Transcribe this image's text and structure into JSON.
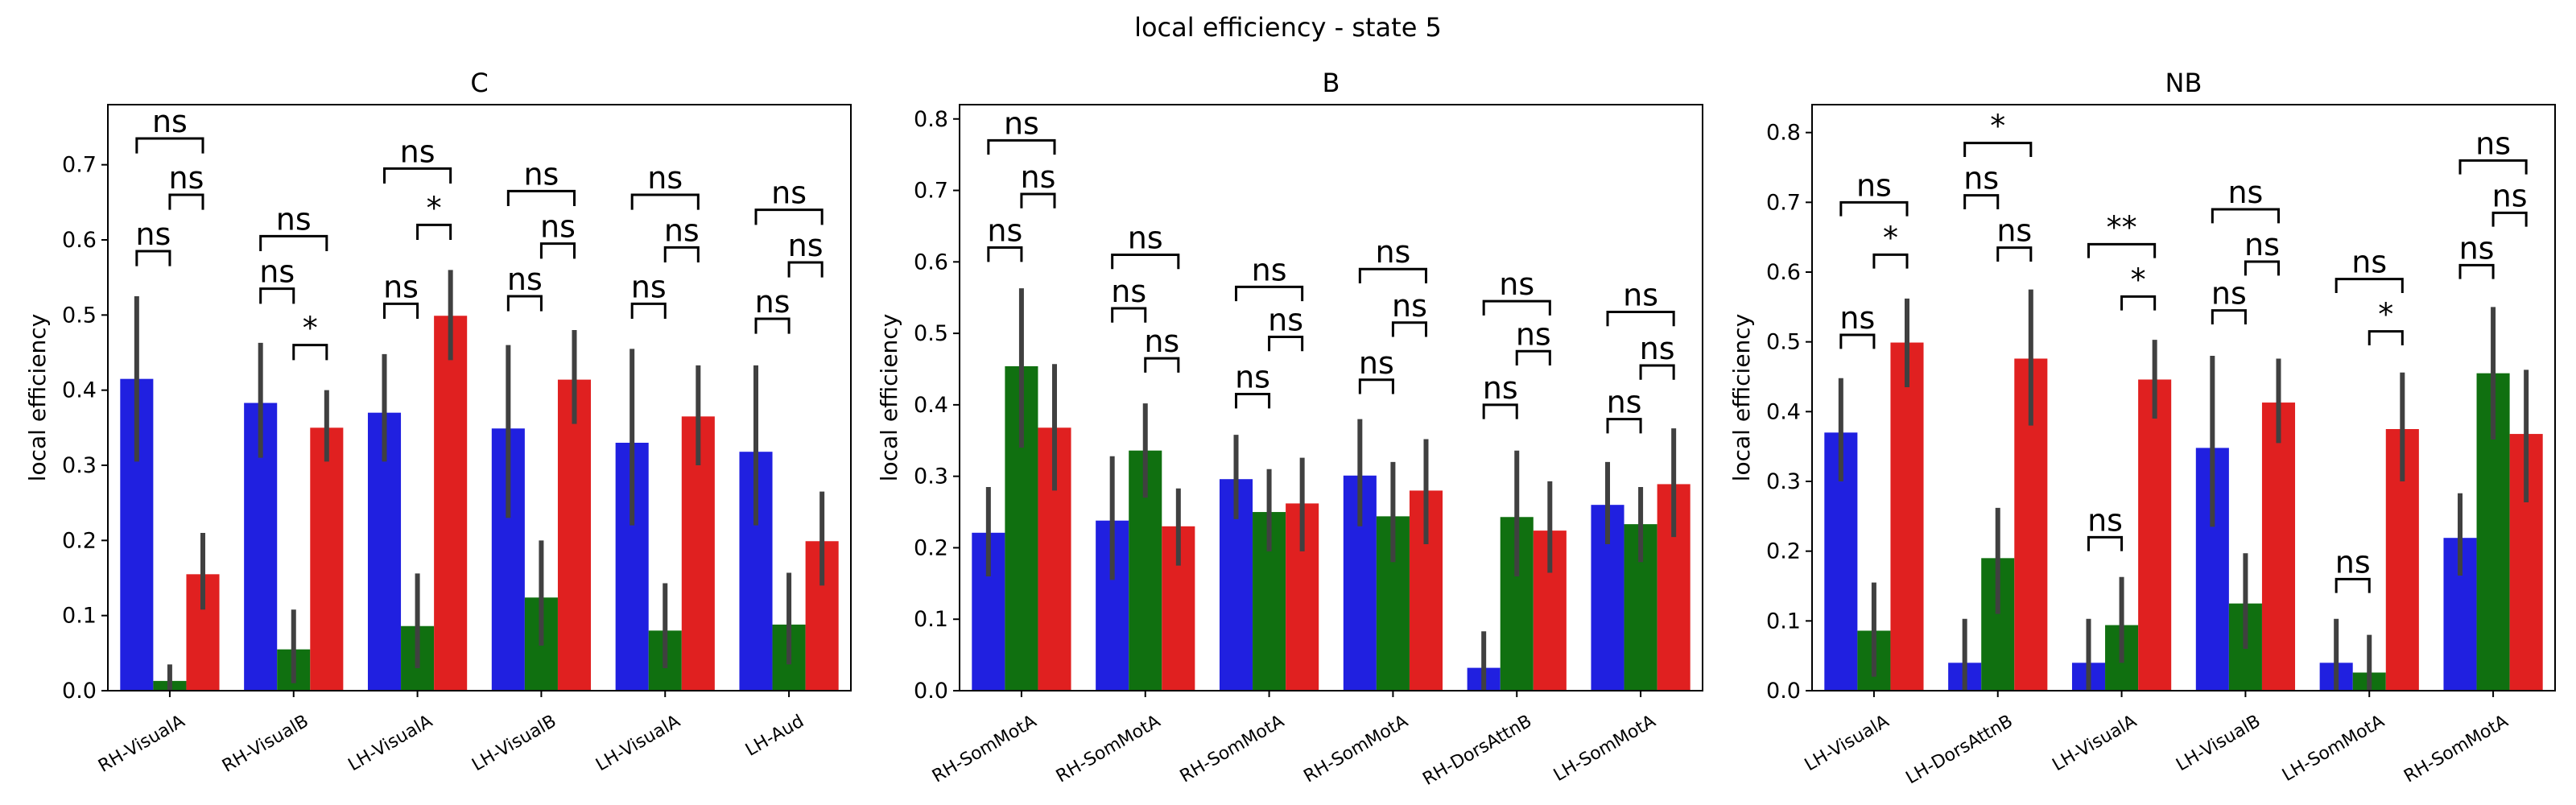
{
  "figure": {
    "suptitle": "local efficiency - state 5"
  },
  "colors": {
    "series": [
      "#2020e0",
      "#107010",
      "#e02020"
    ],
    "errorbar": "#404040"
  },
  "chart_data": [
    {
      "type": "bar",
      "title": "C",
      "ylabel": "local efficiency",
      "ylim": [
        0,
        0.78
      ],
      "yticks": [
        0.0,
        0.1,
        0.2,
        0.3,
        0.4,
        0.5,
        0.6,
        0.7
      ],
      "categories": [
        "RH-VisualA",
        "RH-VisualB",
        "LH-VisualA",
        "LH-VisualB",
        "LH-VisualA",
        "LH-Aud"
      ],
      "series": [
        {
          "values": [
            0.415,
            0.383,
            0.37,
            0.349,
            0.33,
            0.318
          ],
          "err_low": [
            0.305,
            0.31,
            0.305,
            0.23,
            0.22,
            0.22
          ],
          "err_high": [
            0.525,
            0.463,
            0.448,
            0.46,
            0.455,
            0.433
          ]
        },
        {
          "values": [
            0.013,
            0.055,
            0.086,
            0.124,
            0.08,
            0.088
          ],
          "err_low": [
            0.0,
            0.01,
            0.03,
            0.06,
            0.03,
            0.035
          ],
          "err_high": [
            0.035,
            0.108,
            0.156,
            0.2,
            0.143,
            0.157
          ]
        },
        {
          "values": [
            0.155,
            0.35,
            0.499,
            0.414,
            0.365,
            0.199
          ],
          "err_low": [
            0.108,
            0.305,
            0.44,
            0.355,
            0.3,
            0.14
          ],
          "err_high": [
            0.21,
            0.4,
            0.56,
            0.48,
            0.433,
            0.265
          ]
        }
      ],
      "annotations": [
        {
          "cat": 0,
          "label": "ns",
          "pairs": [
            [
              "ns",
              0.565,
              0.585
            ],
            [
              "ns",
              0.64,
              0.66
            ],
            [
              "ns",
              0.715,
              0.735
            ]
          ]
        },
        {
          "cat": 1,
          "label": "ns",
          "pairs": [
            [
              "ns",
              0.515,
              0.535
            ],
            [
              "*",
              0.44,
              0.46
            ],
            [
              "ns",
              0.585,
              0.605
            ]
          ]
        },
        {
          "cat": 2,
          "label": "ns",
          "pairs": [
            [
              "ns",
              0.495,
              0.515
            ],
            [
              "*",
              0.6,
              0.62
            ],
            [
              "ns",
              0.675,
              0.695
            ]
          ]
        },
        {
          "cat": 3,
          "label": "ns",
          "pairs": [
            [
              "ns",
              0.505,
              0.525
            ],
            [
              "ns",
              0.575,
              0.595
            ],
            [
              "ns",
              0.645,
              0.665
            ]
          ]
        },
        {
          "cat": 4,
          "label": "ns",
          "pairs": [
            [
              "ns",
              0.495,
              0.515
            ],
            [
              "ns",
              0.57,
              0.59
            ],
            [
              "ns",
              0.64,
              0.66
            ]
          ]
        },
        {
          "cat": 5,
          "label": "ns",
          "pairs": [
            [
              "ns",
              0.475,
              0.495
            ],
            [
              "ns",
              0.55,
              0.57
            ],
            [
              "ns",
              0.62,
              0.64
            ]
          ]
        }
      ]
    },
    {
      "type": "bar",
      "title": "B",
      "ylabel": "local efficiency",
      "ylim": [
        0,
        0.82
      ],
      "yticks": [
        0.0,
        0.1,
        0.2,
        0.3,
        0.4,
        0.5,
        0.6,
        0.7,
        0.8
      ],
      "categories": [
        "RH-SomMotA",
        "RH-SomMotA",
        "RH-SomMotA",
        "RH-SomMotA",
        "RH-DorsAttnB",
        "LH-SomMotA"
      ],
      "series": [
        {
          "values": [
            0.221,
            0.238,
            0.296,
            0.301,
            0.032,
            0.26
          ],
          "err_low": [
            0.16,
            0.155,
            0.24,
            0.23,
            0.0,
            0.205
          ],
          "err_high": [
            0.285,
            0.328,
            0.358,
            0.38,
            0.083,
            0.32
          ]
        },
        {
          "values": [
            0.454,
            0.336,
            0.25,
            0.244,
            0.243,
            0.233
          ],
          "err_low": [
            0.34,
            0.27,
            0.195,
            0.18,
            0.16,
            0.18
          ],
          "err_high": [
            0.563,
            0.402,
            0.31,
            0.32,
            0.336,
            0.285
          ]
        },
        {
          "values": [
            0.368,
            0.23,
            0.262,
            0.28,
            0.224,
            0.289
          ],
          "err_low": [
            0.28,
            0.175,
            0.195,
            0.205,
            0.165,
            0.215
          ],
          "err_high": [
            0.457,
            0.283,
            0.326,
            0.352,
            0.293,
            0.367
          ]
        }
      ],
      "annotations": [
        {
          "cat": 0,
          "pairs": [
            [
              "ns",
              0.6,
              0.62
            ],
            [
              "ns",
              0.675,
              0.695
            ],
            [
              "ns",
              0.75,
              0.77
            ]
          ]
        },
        {
          "cat": 1,
          "pairs": [
            [
              "ns",
              0.515,
              0.535
            ],
            [
              "ns",
              0.445,
              0.465
            ],
            [
              "ns",
              0.59,
              0.61
            ]
          ]
        },
        {
          "cat": 2,
          "pairs": [
            [
              "ns",
              0.395,
              0.415
            ],
            [
              "ns",
              0.475,
              0.495
            ],
            [
              "ns",
              0.545,
              0.565
            ]
          ]
        },
        {
          "cat": 3,
          "pairs": [
            [
              "ns",
              0.415,
              0.435
            ],
            [
              "ns",
              0.495,
              0.515
            ],
            [
              "ns",
              0.57,
              0.59
            ]
          ]
        },
        {
          "cat": 4,
          "pairs": [
            [
              "ns",
              0.38,
              0.4
            ],
            [
              "ns",
              0.455,
              0.475
            ],
            [
              "ns",
              0.525,
              0.545
            ]
          ]
        },
        {
          "cat": 5,
          "pairs": [
            [
              "ns",
              0.36,
              0.38
            ],
            [
              "ns",
              0.435,
              0.455
            ],
            [
              "ns",
              0.51,
              0.53
            ]
          ]
        }
      ]
    },
    {
      "type": "bar",
      "title": "NB",
      "ylabel": "local efficiency",
      "ylim": [
        0,
        0.84
      ],
      "yticks": [
        0.0,
        0.1,
        0.2,
        0.3,
        0.4,
        0.5,
        0.6,
        0.7,
        0.8
      ],
      "categories": [
        "LH-VisualA",
        "LH-DorsAttnB",
        "LH-VisualA",
        "LH-VisualB",
        "LH-SomMotA",
        "RH-SomMotA"
      ],
      "series": [
        {
          "values": [
            0.37,
            0.04,
            0.04,
            0.348,
            0.04,
            0.219
          ],
          "err_low": [
            0.3,
            0.0,
            0.0,
            0.235,
            0.0,
            0.165
          ],
          "err_high": [
            0.448,
            0.103,
            0.103,
            0.48,
            0.103,
            0.283
          ]
        },
        {
          "values": [
            0.086,
            0.19,
            0.094,
            0.125,
            0.026,
            0.455
          ],
          "err_low": [
            0.02,
            0.11,
            0.04,
            0.06,
            0.0,
            0.36
          ],
          "err_high": [
            0.155,
            0.262,
            0.163,
            0.197,
            0.08,
            0.55
          ]
        },
        {
          "values": [
            0.499,
            0.476,
            0.446,
            0.413,
            0.375,
            0.368
          ],
          "err_low": [
            0.435,
            0.38,
            0.39,
            0.355,
            0.3,
            0.27
          ],
          "err_high": [
            0.562,
            0.575,
            0.503,
            0.476,
            0.456,
            0.46
          ]
        }
      ],
      "annotations": [
        {
          "cat": 0,
          "pairs": [
            [
              "ns",
              0.49,
              0.51
            ],
            [
              "*",
              0.605,
              0.625
            ],
            [
              "ns",
              0.68,
              0.7
            ]
          ]
        },
        {
          "cat": 1,
          "pairs": [
            [
              "ns",
              0.69,
              0.71
            ],
            [
              "ns",
              0.615,
              0.635
            ],
            [
              "*",
              0.765,
              0.785
            ]
          ]
        },
        {
          "cat": 2,
          "pairs": [
            [
              "ns",
              0.2,
              0.22
            ],
            [
              "*",
              0.545,
              0.565
            ],
            [
              "**",
              0.62,
              0.64
            ]
          ]
        },
        {
          "cat": 3,
          "pairs": [
            [
              "ns",
              0.525,
              0.545
            ],
            [
              "ns",
              0.595,
              0.615
            ],
            [
              "ns",
              0.67,
              0.69
            ]
          ]
        },
        {
          "cat": 4,
          "pairs": [
            [
              "ns",
              0.14,
              0.16
            ],
            [
              "*",
              0.495,
              0.515
            ],
            [
              "ns",
              0.57,
              0.59
            ]
          ]
        },
        {
          "cat": 5,
          "pairs": [
            [
              "ns",
              0.59,
              0.61
            ],
            [
              "ns",
              0.665,
              0.685
            ],
            [
              "ns",
              0.74,
              0.76
            ]
          ]
        }
      ]
    }
  ]
}
